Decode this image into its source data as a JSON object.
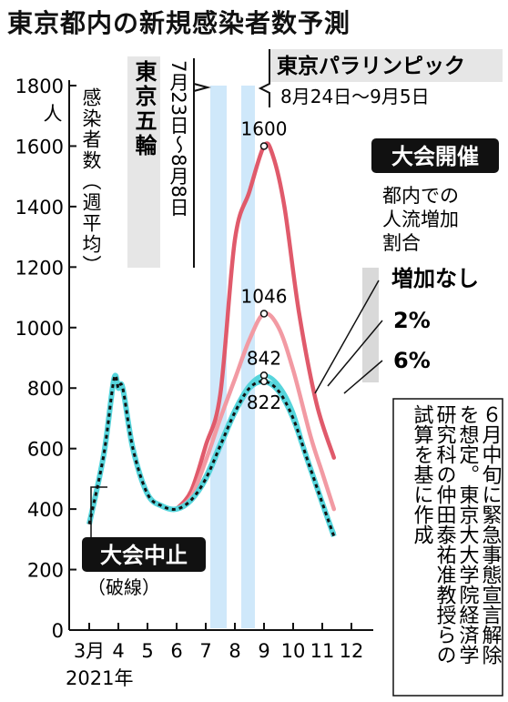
{
  "title": "東京都内の新規感染者数予測",
  "chart_data": {
    "type": "line",
    "title": "東京都内の新規感染者数予測",
    "ylabel": "感染者数（週平均）",
    "y_unit": "人",
    "ylim": [
      0,
      1800
    ],
    "yticks": [
      0,
      200,
      400,
      600,
      800,
      1000,
      1200,
      1400,
      1600,
      1800
    ],
    "x_tick_labels": [
      "3月",
      "4",
      "5",
      "6",
      "7",
      "8",
      "9",
      "10",
      "11",
      "12"
    ],
    "xlabel": "2021年",
    "series": [
      {
        "name": "大会中止",
        "sub": "（破線）",
        "color": "#111111",
        "dashed": true,
        "points": [
          [
            3.0,
            350
          ],
          [
            3.5,
            580
          ],
          [
            3.85,
            830
          ],
          [
            4.0,
            800
          ],
          [
            4.15,
            800
          ],
          [
            4.5,
            600
          ],
          [
            5.0,
            450
          ],
          [
            5.5,
            410
          ],
          [
            6.0,
            400
          ],
          [
            6.5,
            430
          ],
          [
            7.0,
            500
          ],
          [
            7.5,
            610
          ],
          [
            8.0,
            720
          ],
          [
            8.5,
            800
          ],
          [
            9.0,
            822
          ],
          [
            9.5,
            790
          ],
          [
            10.0,
            700
          ],
          [
            10.5,
            560
          ],
          [
            11.0,
            420
          ],
          [
            11.4,
            310
          ]
        ]
      },
      {
        "name": "6%",
        "color": "#e05a6b",
        "points": [
          [
            6.0,
            400
          ],
          [
            6.5,
            460
          ],
          [
            7.0,
            610
          ],
          [
            7.5,
            780
          ],
          [
            8.0,
            1290
          ],
          [
            8.5,
            1450
          ],
          [
            9.0,
            1600
          ],
          [
            9.3,
            1570
          ],
          [
            9.7,
            1400
          ],
          [
            10.2,
            1050
          ],
          [
            10.8,
            750
          ],
          [
            11.4,
            570
          ]
        ]
      },
      {
        "name": "2%",
        "color": "#f29aa3",
        "points": [
          [
            6.0,
            400
          ],
          [
            6.5,
            440
          ],
          [
            7.0,
            560
          ],
          [
            7.5,
            700
          ],
          [
            8.0,
            830
          ],
          [
            8.5,
            960
          ],
          [
            9.0,
            1046
          ],
          [
            9.5,
            1000
          ],
          [
            10.0,
            860
          ],
          [
            10.6,
            640
          ],
          [
            11.0,
            520
          ],
          [
            11.4,
            400
          ]
        ]
      },
      {
        "name": "増加なし",
        "color": "#56d5dc",
        "points": [
          [
            6.0,
            400
          ],
          [
            6.5,
            430
          ],
          [
            7.0,
            510
          ],
          [
            7.5,
            620
          ],
          [
            8.0,
            730
          ],
          [
            8.5,
            810
          ],
          [
            9.0,
            842
          ],
          [
            9.5,
            810
          ],
          [
            10.0,
            720
          ],
          [
            10.5,
            560
          ],
          [
            11.0,
            420
          ],
          [
            11.4,
            320
          ]
        ]
      }
    ],
    "annotations": {
      "peak_labels": [
        {
          "text": "1600",
          "x": 9.0,
          "y": 1600
        },
        {
          "text": "1046",
          "x": 9.0,
          "y": 1046
        },
        {
          "text": "842",
          "x": 9.0,
          "y": 842
        },
        {
          "text": "822",
          "x": 9.0,
          "y": 822
        }
      ],
      "olympics": {
        "label": "東京五輪",
        "dates": "7月23日〜8月8日"
      },
      "paralympics": {
        "label": "東京パラリンピック",
        "dates": "8月24日〜9月5日"
      },
      "held": {
        "label": "大会開催",
        "sub": "都内での人流増加割合"
      },
      "cancelled": {
        "label": "大会中止",
        "sub": "（破線）"
      },
      "source_note": "６月中旬に緊急事態宣言解除を想定。東京大大学院経済学研究科の仲田泰祐准教授らの試算を基に作成"
    }
  }
}
